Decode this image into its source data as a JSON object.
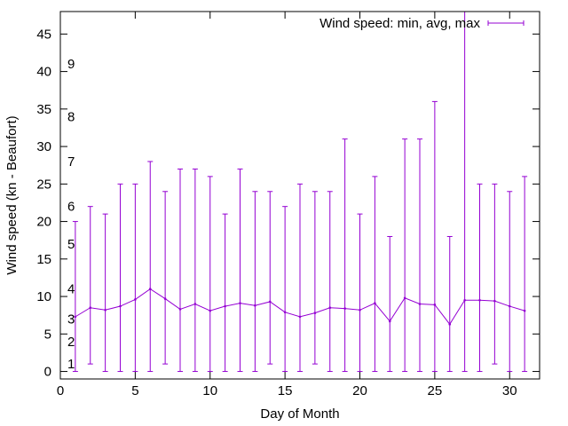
{
  "chart_data": {
    "type": "line",
    "title": "",
    "xlabel": "Day of Month",
    "ylabel": "Wind speed (kn - Beaufort)",
    "xlim": [
      0,
      32
    ],
    "ylim": [
      -1,
      48
    ],
    "xticks": [
      0,
      5,
      10,
      15,
      20,
      25,
      30
    ],
    "xtick_labels": [
      "0",
      "5",
      "10",
      "15",
      "20",
      "25",
      "30"
    ],
    "yticks": [
      0,
      5,
      10,
      15,
      20,
      25,
      30,
      35,
      40,
      45
    ],
    "ytick_labels": [
      "0",
      "5",
      "10",
      "15",
      "20",
      "25",
      "30",
      "35",
      "40",
      "45"
    ],
    "grid": false,
    "legend_position": "top-right",
    "series": [
      {
        "name": "Wind speed: min, avg, max",
        "color": "#9400d3",
        "style": "line with min-max error bars",
        "x": [
          1,
          2,
          3,
          4,
          5,
          6,
          7,
          8,
          9,
          10,
          11,
          12,
          13,
          14,
          15,
          16,
          17,
          18,
          19,
          20,
          21,
          22,
          23,
          24,
          25,
          26,
          27,
          28,
          29,
          30,
          31
        ],
        "avg": [
          7.3,
          8.5,
          8.2,
          8.7,
          9.6,
          11.0,
          9.7,
          8.3,
          9.0,
          8.1,
          8.7,
          9.1,
          8.8,
          9.3,
          7.9,
          7.3,
          7.8,
          8.5,
          8.4,
          8.2,
          9.1,
          6.7,
          9.8,
          9.0,
          8.9,
          6.3,
          9.5,
          9.5,
          9.4,
          8.7,
          8.1
        ],
        "min": [
          0,
          1,
          0,
          0,
          0,
          0,
          1,
          0,
          0,
          0,
          0,
          0,
          0,
          1,
          0,
          0,
          1,
          0,
          0,
          0,
          0,
          0,
          0,
          0,
          0,
          0,
          0,
          0,
          1,
          0,
          0
        ],
        "max": [
          20,
          22,
          21,
          25,
          25,
          28,
          24,
          27,
          27,
          26,
          21,
          27,
          24,
          24,
          22,
          25,
          24,
          24,
          31,
          21,
          26,
          18,
          31,
          31,
          36,
          18,
          48,
          25,
          25,
          24,
          26
        ]
      }
    ],
    "annotations": [
      {
        "text": "1",
        "y": 1
      },
      {
        "text": "2",
        "y": 4
      },
      {
        "text": "3",
        "y": 7
      },
      {
        "text": "4",
        "y": 11
      },
      {
        "text": "5",
        "y": 17
      },
      {
        "text": "6",
        "y": 22
      },
      {
        "text": "7",
        "y": 28
      },
      {
        "text": "8",
        "y": 34
      },
      {
        "text": "9",
        "y": 41
      }
    ]
  }
}
